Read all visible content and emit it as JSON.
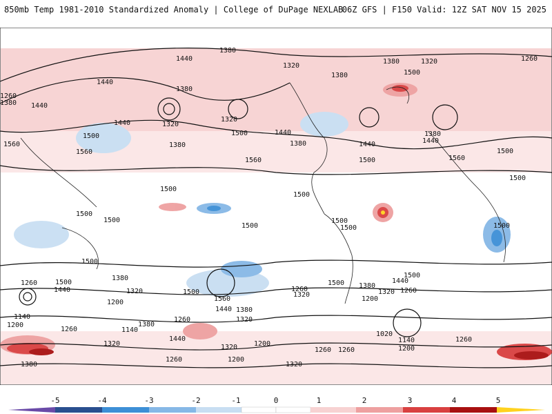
{
  "header": {
    "left_title": "850mb Temp 1981-2010 Standardized Anomaly | College of DuPage NEXLAB",
    "right_title": "06Z GFS | F150 Valid: 12Z SAT NOV 15 2025"
  },
  "colors": {
    "neg5": "#6a4aa8",
    "neg4": "#2a4f8f",
    "neg3": "#3d8fd6",
    "neg2": "#86b8e6",
    "neg1": "#c8def2",
    "zero": "#ffffff",
    "pos1": "#f7d2d2",
    "pos2": "#eea0a0",
    "pos3": "#d94040",
    "pos4": "#a81010",
    "pos5": "#ffd21f",
    "contour": "#111111",
    "coast": "#222222"
  },
  "colorbar": {
    "labels": [
      "-5",
      "-4",
      "-3",
      "-2",
      "-1",
      "0",
      "1",
      "2",
      "3",
      "4",
      "5"
    ]
  },
  "height_labels": [
    "1380",
    "1440",
    "1320",
    "1380",
    "1260",
    "1440",
    "1500",
    "1380",
    "1320",
    "1380",
    "1440",
    "1260",
    "1380",
    "1380",
    "1320",
    "1440",
    "1500",
    "1440",
    "1440",
    "1320",
    "1380",
    "1380",
    "1440",
    "1500",
    "1500",
    "1500",
    "1560",
    "1560",
    "1560",
    "1560",
    "1500",
    "1500",
    "1500",
    "1500",
    "1500",
    "1500",
    "1500",
    "1500",
    "1500",
    "1500",
    "1500",
    "1260",
    "1500",
    "1440",
    "1380",
    "1320",
    "1200",
    "1140",
    "1200",
    "1260",
    "1320",
    "1260",
    "1440",
    "1380",
    "1320",
    "1260",
    "1140",
    "1320",
    "1200",
    "1200",
    "1260",
    "1320",
    "1380",
    "1440",
    "1380",
    "1320",
    "1260",
    "1200",
    "1020",
    "1140",
    "1200",
    "1260",
    "1500",
    "1260",
    "1380",
    "1560",
    "1500",
    "1440",
    "1320",
    "1260"
  ]
}
